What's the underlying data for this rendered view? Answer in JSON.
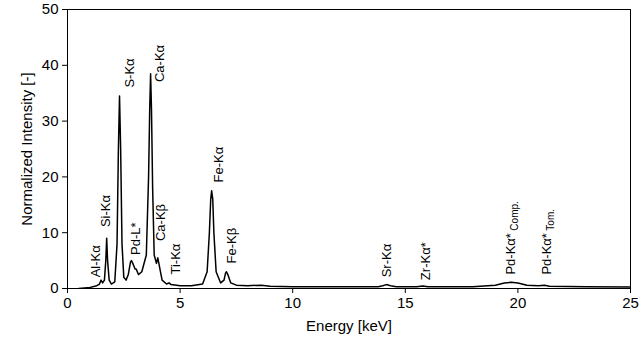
{
  "chart_data": {
    "type": "line",
    "x_label": "Energy [keV]",
    "y_label": "Normalized Intensity [-]",
    "xlim": [
      0,
      25
    ],
    "ylim": [
      0,
      50
    ],
    "xticks": [
      0,
      5,
      10,
      15,
      20,
      25
    ],
    "yticks": [
      0,
      10,
      20,
      30,
      40,
      50
    ],
    "grid": false,
    "color": "#000000",
    "x": [
      0.5,
      1.0,
      1.3,
      1.42,
      1.49,
      1.56,
      1.64,
      1.7,
      1.74,
      1.78,
      1.85,
      1.95,
      2.1,
      2.2,
      2.26,
      2.31,
      2.36,
      2.42,
      2.5,
      2.6,
      2.7,
      2.8,
      2.84,
      2.9,
      3.0,
      3.05,
      3.15,
      3.3,
      3.5,
      3.6,
      3.65,
      3.69,
      3.73,
      3.78,
      3.85,
      3.95,
      4.01,
      4.08,
      4.2,
      4.4,
      4.51,
      4.6,
      5.0,
      5.5,
      6.0,
      6.2,
      6.3,
      6.36,
      6.4,
      6.45,
      6.5,
      6.6,
      6.8,
      6.95,
      7.02,
      7.06,
      7.12,
      7.25,
      7.5,
      8.0,
      8.6,
      9.0,
      10.0,
      12.0,
      13.8,
      14.0,
      14.16,
      14.35,
      14.6,
      15.5,
      15.78,
      16.0,
      18.0,
      19.0,
      19.4,
      19.7,
      20.0,
      20.4,
      20.9,
      21.18,
      21.4,
      23.0,
      25.0
    ],
    "values": [
      0,
      0.2,
      0.5,
      0.8,
      1.5,
      1.0,
      1.5,
      5,
      9,
      5,
      1.5,
      0.8,
      1.2,
      8,
      25,
      34.5,
      25,
      8,
      2,
      1.5,
      2.5,
      4.8,
      5,
      4.5,
      3.5,
      3.5,
      2.5,
      3,
      6,
      20,
      32,
      38.5,
      32,
      18,
      6,
      4.5,
      5.5,
      4,
      1.5,
      0.8,
      1.0,
      0.7,
      0.5,
      0.5,
      0.8,
      3,
      10,
      16,
      17.5,
      16,
      10,
      3,
      1,
      1.5,
      2.8,
      3,
      2.5,
      1,
      0.6,
      0.5,
      0.6,
      0.4,
      0.3,
      0.3,
      0.3,
      0.5,
      0.7,
      0.5,
      0.3,
      0.3,
      0.45,
      0.3,
      0.3,
      0.6,
      1.0,
      1.1,
      1.0,
      0.6,
      0.5,
      0.6,
      0.4,
      0.3,
      0.25
    ],
    "annotations": [
      {
        "text": "Al-Kα",
        "x": 1.25,
        "y": 2
      },
      {
        "text": "Si-Kα",
        "x": 1.7,
        "y": 11
      },
      {
        "text": "S-Kα",
        "x": 2.75,
        "y": 36
      },
      {
        "text": "Pd-L*",
        "x": 3.05,
        "y": 6
      },
      {
        "text": "Ca-Kα",
        "x": 4.1,
        "y": 37
      },
      {
        "text": "Ca-Kβ",
        "x": 4.15,
        "y": 8.5
      },
      {
        "text": "Ti-Kα",
        "x": 4.8,
        "y": 2.5
      },
      {
        "text": "Fe-Kα",
        "x": 6.7,
        "y": 19
      },
      {
        "text": "Fe-Kβ",
        "x": 7.3,
        "y": 4.5
      },
      {
        "text": "Sr-Kα",
        "x": 14.2,
        "y": 2
      },
      {
        "text": "Zr-Kα*",
        "x": 15.9,
        "y": 1.5
      },
      {
        "text": "Pd-Kα*",
        "subscript": "Comp.",
        "x": 19.7,
        "y": 2.5
      },
      {
        "text": "Pd-Kα*",
        "subscript": "Tom.",
        "x": 21.3,
        "y": 2.5
      }
    ]
  }
}
